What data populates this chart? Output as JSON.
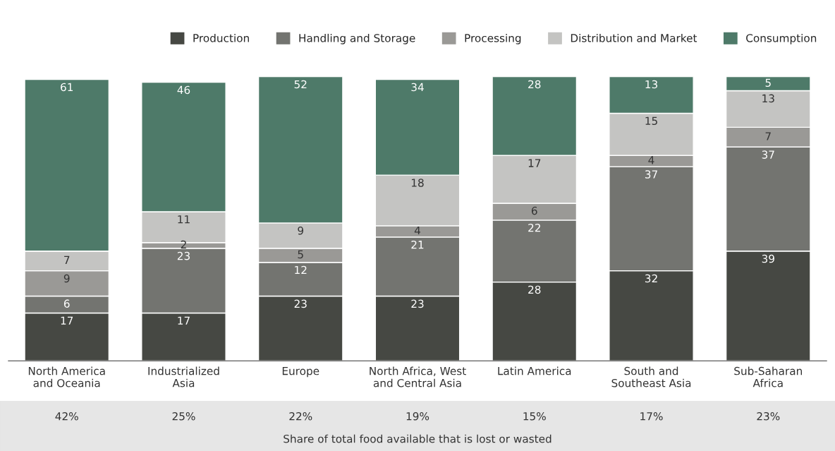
{
  "chart_data": {
    "type": "bar",
    "stacked": true,
    "data_labels": true,
    "legend": "top right",
    "categories": [
      "North America\nand Oceania",
      "Industrialized\nAsia",
      "Europe",
      "North Africa, West\nand Central Asia",
      "Latin America",
      "South and\nSoutheast Asia",
      "Sub-Saharan\nAfrica"
    ],
    "series": [
      {
        "name": "Production",
        "color": "#464843",
        "values": [
          17,
          17,
          23,
          23,
          28,
          32,
          39
        ]
      },
      {
        "name": "Handling and Storage",
        "color": "#737470",
        "values": [
          6,
          23,
          12,
          21,
          22,
          37,
          37
        ]
      },
      {
        "name": "Processing",
        "color": "#9a9996",
        "values": [
          9,
          2,
          5,
          4,
          6,
          4,
          7
        ]
      },
      {
        "name": "Distribution and Market",
        "color": "#c4c4c2",
        "values": [
          7,
          11,
          9,
          18,
          17,
          15,
          13
        ]
      },
      {
        "name": "Consumption",
        "color": "#4e7a69",
        "values": [
          61,
          46,
          52,
          34,
          28,
          13,
          5
        ]
      }
    ],
    "annotations": [
      "42%",
      "25%",
      "22%",
      "19%",
      "15%",
      "17%",
      "23%",
      "Share of total food available that is lost or wasted"
    ]
  }
}
